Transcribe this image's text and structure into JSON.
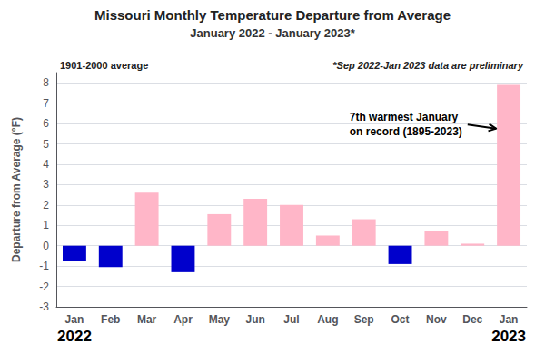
{
  "chart_data": {
    "type": "bar",
    "title": "Missouri Monthly Temperature Departure from Average",
    "subtitle": "January 2022 - January 2023*",
    "categories": [
      "Jan",
      "Feb",
      "Mar",
      "Apr",
      "May",
      "Jun",
      "Jul",
      "Aug",
      "Sep",
      "Oct",
      "Nov",
      "Dec",
      "Jan"
    ],
    "values": [
      -0.75,
      -1.05,
      2.6,
      -1.3,
      1.55,
      2.3,
      2.0,
      0.5,
      1.3,
      -0.9,
      0.7,
      0.1,
      7.9
    ],
    "colors": [
      "#0000cc",
      "#0000cc",
      "#ffb6c8",
      "#0000cc",
      "#ffb6c8",
      "#ffb6c8",
      "#ffb6c8",
      "#ffb6c8",
      "#ffb6c8",
      "#0000cc",
      "#ffb6c8",
      "#ffb6c8",
      "#ffb6c8"
    ],
    "ylabel": "Departure from Average (°F)",
    "ylim": [
      -3,
      8.5
    ],
    "yticks": [
      -3,
      -2,
      -1,
      0,
      1,
      2,
      3,
      4,
      5,
      6,
      7,
      8
    ],
    "grid": true,
    "annotations": [
      "1901-2000 average",
      "*Sep 2022-Jan 2023 data are preliminary",
      "7th warmest January\non record (1895-2023)",
      "2022",
      "2023"
    ]
  }
}
